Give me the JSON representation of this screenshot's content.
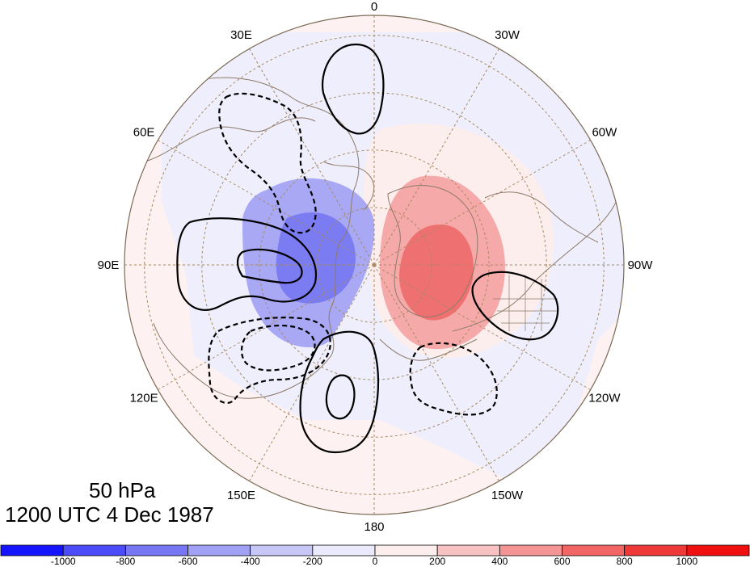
{
  "map": {
    "projection": "north polar stereographic",
    "longitude_labels": [
      "0",
      "30W",
      "60W",
      "90W",
      "120W",
      "150W",
      "180",
      "150E",
      "120E",
      "90E",
      "60E",
      "30E"
    ],
    "colors": {
      "coastline": "#8c7a68",
      "gridline": "#a68a60",
      "contour": "#000000"
    }
  },
  "caption": {
    "level": "50 hPa",
    "time": "1200 UTC 4 Dec 1987"
  },
  "colorbar": {
    "levels": [
      "-1000",
      "-800",
      "-600",
      "-400",
      "-200",
      "0",
      "200",
      "400",
      "600",
      "800",
      "1000"
    ],
    "colors": [
      "#1414ff",
      "#4b4bfa",
      "#7777f5",
      "#a0a0f5",
      "#c6c6f7",
      "#eaeafc",
      "#fdeeee",
      "#f9c2c2",
      "#f59494",
      "#f26565",
      "#ef3939",
      "#f01010"
    ]
  }
}
